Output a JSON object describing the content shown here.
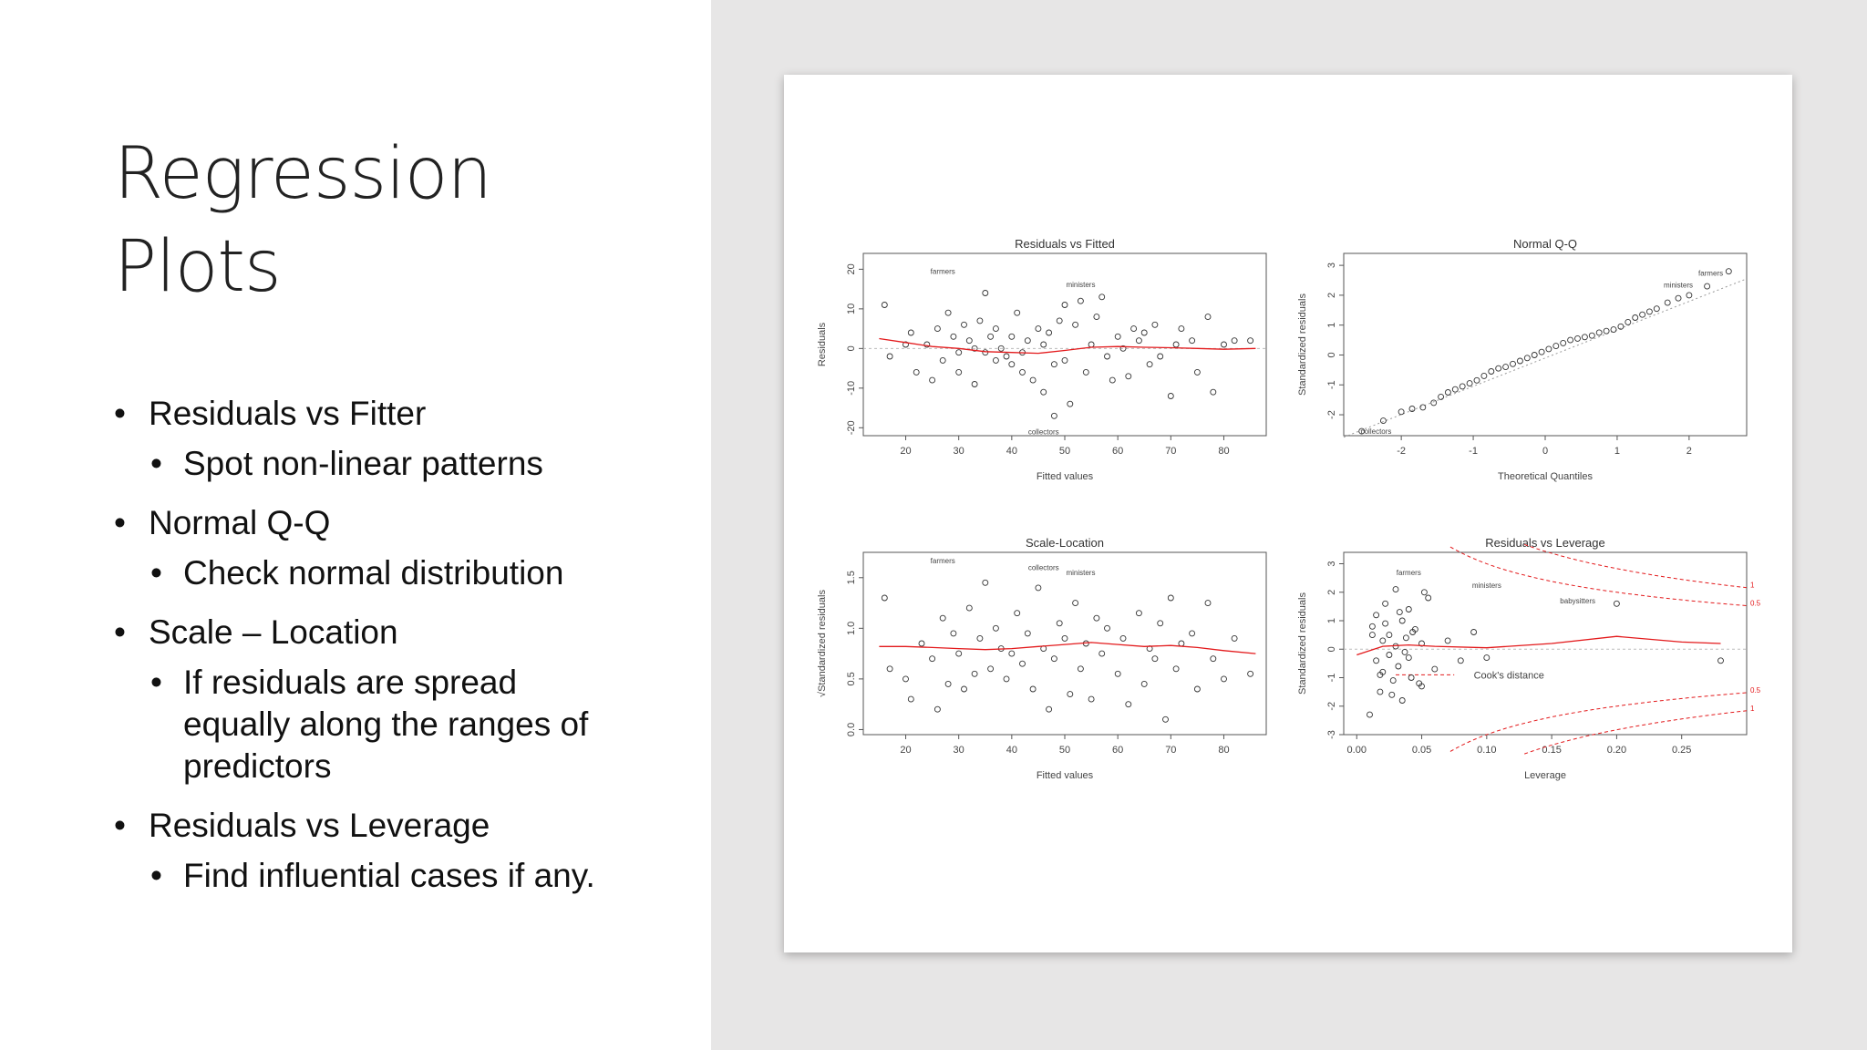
{
  "slide": {
    "title_line1": "Regression",
    "title_line2": "Plots",
    "bullets": [
      {
        "label": "Residuals vs Fitter",
        "sub": [
          "Spot non-linear patterns"
        ]
      },
      {
        "label": "Normal Q-Q",
        "sub": [
          "Check normal distribution"
        ]
      },
      {
        "label": "Scale – Location",
        "sub": [
          "If residuals are spread",
          "equally along the ranges of",
          "predictors"
        ]
      },
      {
        "label": "Residuals vs Leverage",
        "sub": [
          "Find influential cases if any."
        ]
      }
    ]
  },
  "colors": {
    "smooth_line": "#e31a1c",
    "points": "#333333",
    "right_panel": "#e7e6e6"
  },
  "chart_data": [
    {
      "type": "scatter",
      "title": "Residuals vs Fitted",
      "xlabel": "Fitted values",
      "ylabel": "Residuals",
      "xlim": [
        12,
        88
      ],
      "ylim": [
        -22,
        24
      ],
      "xticks": [
        20,
        30,
        40,
        50,
        60,
        70,
        80
      ],
      "yticks": [
        -20,
        -10,
        0,
        10,
        20
      ],
      "x": [
        16,
        17,
        20,
        21,
        22,
        24,
        25,
        26,
        27,
        28,
        29,
        30,
        30,
        31,
        32,
        33,
        33,
        34,
        35,
        35,
        36,
        37,
        37,
        38,
        39,
        40,
        40,
        41,
        42,
        42,
        43,
        44,
        45,
        46,
        46,
        47,
        48,
        48,
        49,
        50,
        50,
        51,
        52,
        53,
        54,
        55,
        56,
        57,
        58,
        59,
        60,
        61,
        62,
        63,
        64,
        65,
        66,
        67,
        68,
        70,
        71,
        72,
        74,
        75,
        77,
        78,
        80,
        82,
        85
      ],
      "y": [
        11,
        -2,
        1,
        4,
        -6,
        1,
        -8,
        5,
        -3,
        9,
        3,
        -1,
        -6,
        6,
        2,
        -9,
        0,
        7,
        -1,
        14,
        3,
        -3,
        5,
        0,
        -2,
        3,
        -4,
        9,
        -1,
        -6,
        2,
        -8,
        5,
        1,
        -11,
        4,
        -4,
        -17,
        7,
        -3,
        11,
        -14,
        6,
        12,
        -6,
        1,
        8,
        13,
        -2,
        -8,
        3,
        0,
        -7,
        5,
        2,
        4,
        -4,
        6,
        -2,
        -12,
        1,
        5,
        2,
        -6,
        8,
        -11,
        1,
        2,
        2
      ],
      "smooth_x": [
        15,
        20,
        25,
        30,
        35,
        40,
        45,
        50,
        55,
        60,
        65,
        70,
        75,
        80,
        86
      ],
      "smooth_y": [
        2.5,
        1.5,
        0.5,
        0,
        -0.8,
        -1,
        -1.2,
        -0.5,
        0.3,
        0.5,
        0.3,
        0.2,
        0,
        -0.2,
        0
      ],
      "annotations": [
        {
          "label": "farmers",
          "x": 27,
          "y": 19.5
        },
        {
          "label": "ministers",
          "x": 53,
          "y": 16.2
        },
        {
          "label": "collectors",
          "x": 46,
          "y": -21
        }
      ]
    },
    {
      "type": "scatter",
      "title": "Normal Q-Q",
      "xlabel": "Theoretical Quantiles",
      "ylabel": "Standardized residuals",
      "xlim": [
        -2.8,
        2.8
      ],
      "ylim": [
        -2.7,
        3.4
      ],
      "xticks": [
        -2,
        -1,
        0,
        1,
        2
      ],
      "yticks": [
        -2,
        -1,
        0,
        1,
        2,
        3
      ],
      "x": [
        -2.55,
        -2.25,
        -2.0,
        -1.85,
        -1.7,
        -1.55,
        -1.45,
        -1.35,
        -1.25,
        -1.15,
        -1.05,
        -0.95,
        -0.85,
        -0.75,
        -0.65,
        -0.55,
        -0.45,
        -0.35,
        -0.25,
        -0.15,
        -0.05,
        0.05,
        0.15,
        0.25,
        0.35,
        0.45,
        0.55,
        0.65,
        0.75,
        0.85,
        0.95,
        1.05,
        1.15,
        1.25,
        1.35,
        1.45,
        1.55,
        1.7,
        1.85,
        2.0,
        2.25,
        2.55
      ],
      "y": [
        -2.55,
        -2.2,
        -1.9,
        -1.8,
        -1.75,
        -1.6,
        -1.4,
        -1.25,
        -1.15,
        -1.05,
        -0.95,
        -0.85,
        -0.7,
        -0.55,
        -0.45,
        -0.4,
        -0.3,
        -0.2,
        -0.1,
        0.0,
        0.1,
        0.2,
        0.3,
        0.4,
        0.5,
        0.55,
        0.6,
        0.65,
        0.75,
        0.8,
        0.85,
        0.95,
        1.1,
        1.25,
        1.35,
        1.45,
        1.55,
        1.75,
        1.9,
        2.0,
        2.3,
        2.8
      ],
      "ref_line": [
        [
          -2.8,
          -2.75
        ],
        [
          2.8,
          2.55
        ]
      ],
      "annotations": [
        {
          "label": "farmers",
          "x": 2.3,
          "y": 2.75
        },
        {
          "label": "ministers",
          "x": 1.85,
          "y": 2.35
        },
        {
          "label": "collectors",
          "x": -2.35,
          "y": -2.55
        }
      ]
    },
    {
      "type": "scatter",
      "title": "Scale-Location",
      "xlabel": "Fitted values",
      "ylabel": "√Standardized residuals",
      "xlim": [
        12,
        88
      ],
      "ylim": [
        -0.05,
        1.75
      ],
      "xticks": [
        20,
        30,
        40,
        50,
        60,
        70,
        80
      ],
      "yticks": [
        0.0,
        0.5,
        1.0,
        1.5
      ],
      "x": [
        16,
        17,
        20,
        21,
        23,
        25,
        26,
        27,
        28,
        29,
        30,
        31,
        32,
        33,
        34,
        35,
        36,
        37,
        38,
        39,
        40,
        41,
        42,
        43,
        44,
        45,
        46,
        47,
        48,
        49,
        50,
        51,
        52,
        53,
        54,
        55,
        56,
        57,
        58,
        60,
        61,
        62,
        64,
        65,
        66,
        67,
        68,
        69,
        70,
        71,
        72,
        74,
        75,
        77,
        78,
        80,
        82,
        85
      ],
      "y": [
        1.3,
        0.6,
        0.5,
        0.3,
        0.85,
        0.7,
        0.2,
        1.1,
        0.45,
        0.95,
        0.75,
        0.4,
        1.2,
        0.55,
        0.9,
        1.45,
        0.6,
        1.0,
        0.8,
        0.5,
        0.75,
        1.15,
        0.65,
        0.95,
        0.4,
        1.4,
        0.8,
        0.2,
        0.7,
        1.05,
        0.9,
        0.35,
        1.25,
        0.6,
        0.85,
        0.3,
        1.1,
        0.75,
        1.0,
        0.55,
        0.9,
        0.25,
        1.15,
        0.45,
        0.8,
        0.7,
        1.05,
        0.1,
        1.3,
        0.6,
        0.85,
        0.95,
        0.4,
        1.25,
        0.7,
        0.5,
        0.9,
        0.55
      ],
      "smooth_x": [
        15,
        20,
        25,
        30,
        35,
        40,
        45,
        50,
        55,
        60,
        65,
        70,
        75,
        80,
        86
      ],
      "smooth_y": [
        0.82,
        0.82,
        0.81,
        0.8,
        0.79,
        0.8,
        0.82,
        0.84,
        0.86,
        0.84,
        0.82,
        0.83,
        0.81,
        0.78,
        0.75
      ],
      "annotations": [
        {
          "label": "farmers",
          "x": 27,
          "y": 1.67
        },
        {
          "label": "collectors",
          "x": 46,
          "y": 1.6
        },
        {
          "label": "ministers",
          "x": 53,
          "y": 1.55
        }
      ]
    },
    {
      "type": "scatter",
      "title": "Residuals vs Leverage",
      "xlabel": "Leverage",
      "ylabel": "Standardized residuals",
      "xlim": [
        -0.01,
        0.3
      ],
      "ylim": [
        -3.0,
        3.4
      ],
      "xticks": [
        0.0,
        0.05,
        0.1,
        0.15,
        0.2,
        0.25
      ],
      "xtick_labels": [
        "0.00",
        "0.05",
        "0.10",
        "0.15",
        "0.20",
        "0.25"
      ],
      "yticks": [
        -3,
        -2,
        -1,
        0,
        1,
        2,
        3
      ],
      "x": [
        0.01,
        0.012,
        0.015,
        0.015,
        0.018,
        0.02,
        0.02,
        0.022,
        0.025,
        0.025,
        0.028,
        0.03,
        0.03,
        0.032,
        0.035,
        0.035,
        0.038,
        0.04,
        0.04,
        0.042,
        0.045,
        0.05,
        0.05,
        0.055,
        0.06,
        0.07,
        0.08,
        0.09,
        0.1,
        0.2,
        0.28,
        0.012,
        0.018,
        0.022,
        0.027,
        0.033,
        0.037,
        0.043,
        0.048,
        0.052
      ],
      "y": [
        -2.3,
        0.8,
        -0.4,
        1.2,
        -1.5,
        0.3,
        -0.8,
        1.6,
        -0.2,
        0.5,
        -1.1,
        2.1,
        0.1,
        -0.6,
        1.0,
        -1.8,
        0.4,
        -0.3,
        1.4,
        -1.0,
        0.7,
        0.2,
        -1.3,
        1.8,
        -0.7,
        0.3,
        -0.4,
        0.6,
        -0.3,
        1.6,
        -0.4,
        0.5,
        -0.9,
        0.9,
        -1.6,
        1.3,
        -0.1,
        0.6,
        -1.2,
        2.0
      ],
      "smooth_x": [
        0.0,
        0.02,
        0.04,
        0.06,
        0.1,
        0.15,
        0.2,
        0.25,
        0.28
      ],
      "smooth_y": [
        -0.2,
        0.1,
        0.15,
        0.1,
        0.05,
        0.2,
        0.45,
        0.25,
        0.2
      ],
      "cooks_levels": [
        0.5,
        1
      ],
      "legend_label": "Cook's distance",
      "annotations": [
        {
          "label": "farmers",
          "x": 0.04,
          "y": 2.7
        },
        {
          "label": "ministers",
          "x": 0.1,
          "y": 2.25
        },
        {
          "label": "babysitters",
          "x": 0.17,
          "y": 1.7
        }
      ]
    }
  ]
}
